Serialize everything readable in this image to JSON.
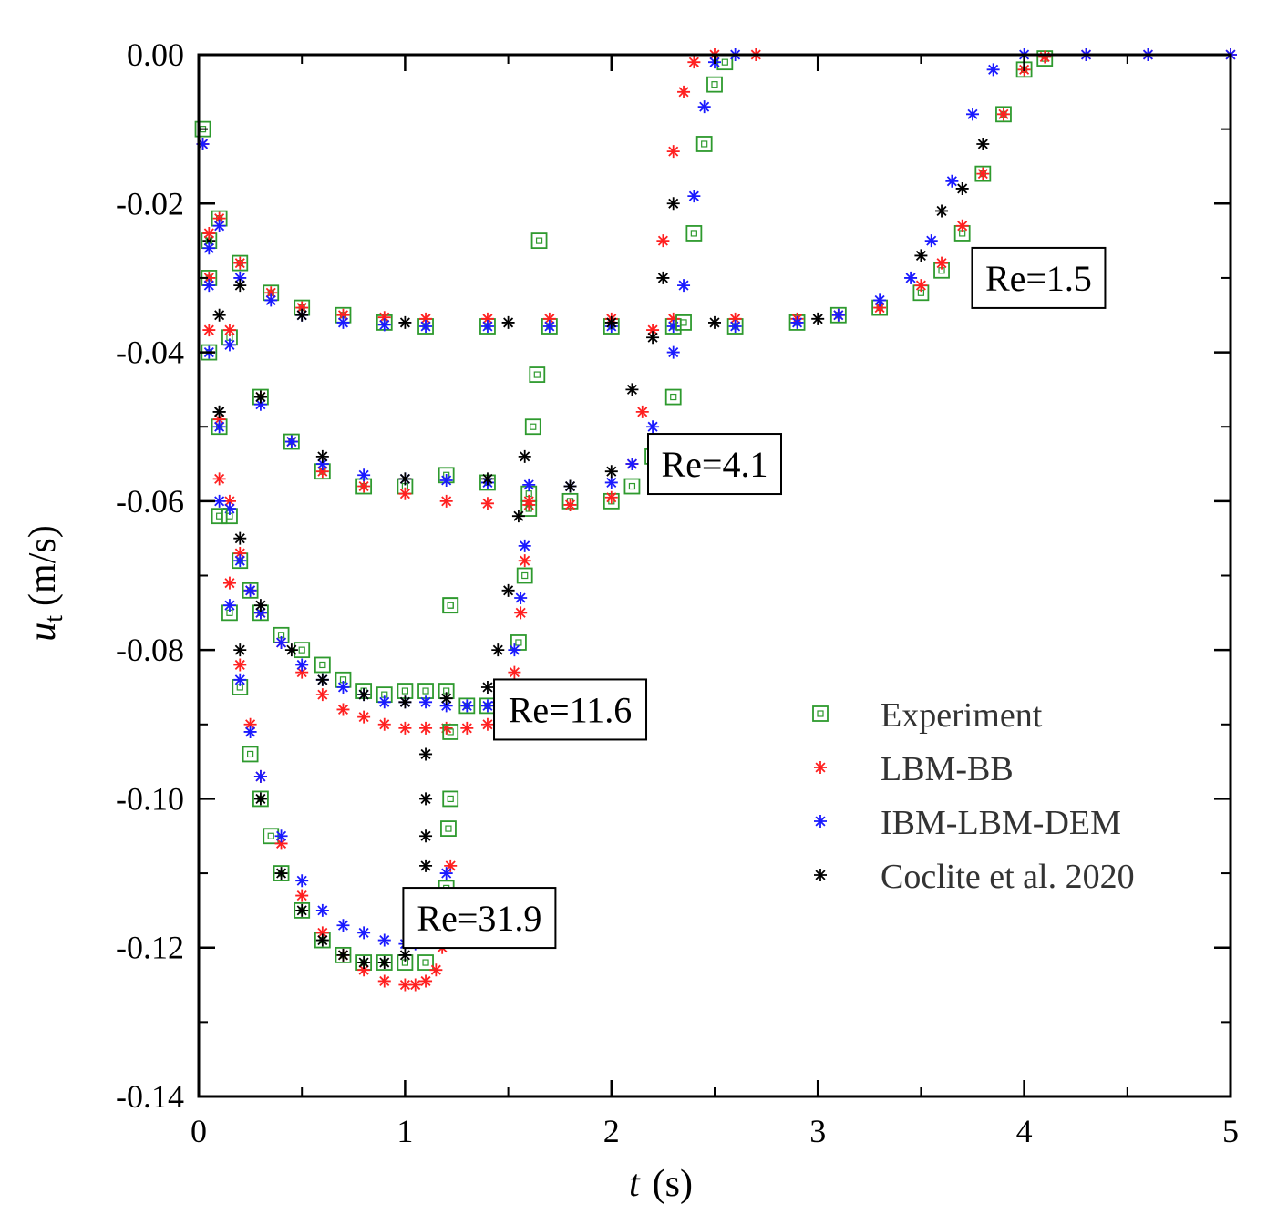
{
  "chart_data": {
    "type": "scatter",
    "xlabel": {
      "symbol": "t",
      "unit": "(s)"
    },
    "ylabel": {
      "symbol": "u",
      "subscript": "t",
      "unit": "(m/s)"
    },
    "xlim": [
      0,
      5
    ],
    "ylim": [
      -0.14,
      0.0
    ],
    "xticks": [
      0,
      1,
      2,
      3,
      4,
      5
    ],
    "xtick_labels": [
      "0",
      "1",
      "2",
      "3",
      "4",
      "5"
    ],
    "yticks": [
      0.0,
      -0.02,
      -0.04,
      -0.06,
      -0.08,
      -0.1,
      -0.12,
      -0.14
    ],
    "ytick_labels": [
      "0.00",
      "-0.02",
      "-0.04",
      "-0.06",
      "-0.08",
      "-0.10",
      "-0.12",
      "-0.14"
    ],
    "grid": false,
    "legend_position": "center-right",
    "legend": [
      {
        "label": "Experiment",
        "marker": "square",
        "color": "#2e9a2e"
      },
      {
        "label": "LBM-BB",
        "marker": "asterisk",
        "color": "#ff2020"
      },
      {
        "label": "IBM-LBM-DEM",
        "marker": "asterisk",
        "color": "#1a1aff"
      },
      {
        "label": "Coclite et al. 2020",
        "marker": "asterisk",
        "color": "#000000"
      }
    ],
    "annotations": [
      {
        "text": "Re=1.5",
        "x": 4.07,
        "y": -0.03
      },
      {
        "text": "Re=4.1",
        "x": 2.5,
        "y": -0.055
      },
      {
        "text": "Re=11.6",
        "x": 1.8,
        "y": -0.088
      },
      {
        "text": "Re=31.9",
        "x": 1.36,
        "y": -0.116
      }
    ],
    "series": [
      {
        "name": "Experiment",
        "case": "Re=1.5",
        "x": [
          0.02,
          0.1,
          0.2,
          0.35,
          0.5,
          0.7,
          0.9,
          1.1,
          1.4,
          1.7,
          2.0,
          2.3,
          2.6,
          2.9,
          3.1,
          3.3,
          3.5,
          3.6,
          3.7,
          3.8,
          3.9,
          4.0,
          4.1
        ],
        "y": [
          -0.01,
          -0.022,
          -0.028,
          -0.032,
          -0.034,
          -0.035,
          -0.036,
          -0.0365,
          -0.0365,
          -0.0365,
          -0.0365,
          -0.0365,
          -0.0365,
          -0.036,
          -0.035,
          -0.034,
          -0.032,
          -0.029,
          -0.024,
          -0.016,
          -0.008,
          -0.002,
          -0.0005
        ]
      },
      {
        "name": "LBM-BB",
        "case": "Re=1.5",
        "x": [
          0.02,
          0.1,
          0.2,
          0.35,
          0.5,
          0.7,
          0.9,
          1.1,
          1.4,
          1.7,
          2.0,
          2.3,
          2.6,
          2.9,
          3.1,
          3.3,
          3.5,
          3.6,
          3.7,
          3.8,
          3.9,
          4.0,
          4.1,
          4.3,
          4.6,
          5.0
        ],
        "y": [
          -0.012,
          -0.022,
          -0.028,
          -0.032,
          -0.034,
          -0.035,
          -0.0353,
          -0.0355,
          -0.0355,
          -0.0355,
          -0.0355,
          -0.0355,
          -0.0355,
          -0.0355,
          -0.035,
          -0.034,
          -0.031,
          -0.028,
          -0.023,
          -0.016,
          -0.008,
          -0.002,
          -0.0003,
          0.0,
          0.0,
          0.0
        ]
      },
      {
        "name": "IBM-LBM-DEM",
        "case": "Re=1.5",
        "x": [
          0.02,
          0.1,
          0.2,
          0.35,
          0.5,
          0.7,
          0.9,
          1.1,
          1.4,
          1.7,
          2.0,
          2.3,
          2.6,
          2.9,
          3.1,
          3.3,
          3.45,
          3.55,
          3.65,
          3.75,
          3.85,
          4.0,
          4.3,
          4.6,
          5.0
        ],
        "y": [
          -0.012,
          -0.023,
          -0.03,
          -0.033,
          -0.035,
          -0.036,
          -0.0363,
          -0.0365,
          -0.0365,
          -0.0365,
          -0.0365,
          -0.0365,
          -0.0365,
          -0.036,
          -0.035,
          -0.033,
          -0.03,
          -0.025,
          -0.017,
          -0.008,
          -0.002,
          0.0,
          0.0,
          0.0,
          0.0
        ]
      },
      {
        "name": "Coclite et al. 2020",
        "case": "Re=1.5",
        "x": [
          0.05,
          0.2,
          0.5,
          1.0,
          1.5,
          2.0,
          2.5,
          3.0,
          3.5,
          3.6,
          3.7,
          3.8
        ],
        "y": [
          -0.025,
          -0.031,
          -0.035,
          -0.036,
          -0.036,
          -0.036,
          -0.036,
          -0.0355,
          -0.027,
          -0.021,
          -0.018,
          -0.012
        ]
      },
      {
        "name": "Experiment",
        "case": "Re=4.1",
        "x": [
          0.05,
          0.15,
          0.3,
          0.45,
          0.6,
          0.8,
          1.0,
          1.2,
          1.4,
          1.6,
          1.8,
          2.0,
          2.1,
          2.2,
          2.3,
          2.35,
          2.4,
          2.45,
          2.5,
          2.55
        ],
        "y": [
          -0.025,
          -0.038,
          -0.046,
          -0.052,
          -0.056,
          -0.058,
          -0.058,
          -0.0565,
          -0.0575,
          -0.059,
          -0.06,
          -0.06,
          -0.058,
          -0.054,
          -0.046,
          -0.036,
          -0.024,
          -0.012,
          -0.004,
          -0.001
        ]
      },
      {
        "name": "LBM-BB",
        "case": "Re=4.1",
        "x": [
          0.05,
          0.15,
          0.3,
          0.45,
          0.6,
          0.8,
          1.0,
          1.2,
          1.4,
          1.6,
          1.8,
          2.0,
          2.1,
          2.15,
          2.2,
          2.25,
          2.3,
          2.35,
          2.4,
          2.5,
          2.7
        ],
        "y": [
          -0.024,
          -0.037,
          -0.046,
          -0.052,
          -0.056,
          -0.058,
          -0.059,
          -0.06,
          -0.0603,
          -0.0605,
          -0.0605,
          -0.0595,
          -0.055,
          -0.048,
          -0.037,
          -0.025,
          -0.013,
          -0.005,
          -0.001,
          0.0,
          0.0
        ]
      },
      {
        "name": "IBM-LBM-DEM",
        "case": "Re=4.1",
        "x": [
          0.05,
          0.15,
          0.3,
          0.45,
          0.6,
          0.8,
          1.0,
          1.2,
          1.4,
          1.6,
          1.8,
          2.0,
          2.1,
          2.2,
          2.3,
          2.35,
          2.4,
          2.45,
          2.5,
          2.6
        ],
        "y": [
          -0.026,
          -0.039,
          -0.047,
          -0.052,
          -0.055,
          -0.0565,
          -0.057,
          -0.0572,
          -0.0575,
          -0.0578,
          -0.058,
          -0.0575,
          -0.055,
          -0.05,
          -0.04,
          -0.031,
          -0.019,
          -0.007,
          -0.001,
          0.0
        ]
      },
      {
        "name": "Coclite et al. 2020",
        "case": "Re=4.1",
        "x": [
          0.1,
          0.3,
          0.6,
          1.0,
          1.4,
          1.8,
          2.0,
          2.1,
          2.2,
          2.25,
          2.3
        ],
        "y": [
          -0.035,
          -0.046,
          -0.054,
          -0.057,
          -0.057,
          -0.058,
          -0.056,
          -0.045,
          -0.038,
          -0.03,
          -0.02
        ]
      },
      {
        "name": "Experiment",
        "case": "Re=11.6",
        "x": [
          0.05,
          0.1,
          0.15,
          0.2,
          0.25,
          0.3,
          0.4,
          0.5,
          0.6,
          0.7,
          0.8,
          0.9,
          1.0,
          1.1,
          1.2,
          1.3,
          1.4,
          1.5,
          1.55,
          1.58,
          1.6,
          1.62,
          1.64,
          1.65
        ],
        "y": [
          -0.03,
          -0.05,
          -0.062,
          -0.068,
          -0.072,
          -0.075,
          -0.078,
          -0.08,
          -0.082,
          -0.084,
          -0.0855,
          -0.086,
          -0.0855,
          -0.0855,
          -0.0855,
          -0.0875,
          -0.0875,
          -0.086,
          -0.079,
          -0.07,
          -0.061,
          -0.05,
          -0.043,
          -0.025
        ]
      },
      {
        "name": "LBM-BB",
        "case": "Re=11.6",
        "x": [
          0.05,
          0.1,
          0.15,
          0.2,
          0.25,
          0.3,
          0.4,
          0.5,
          0.6,
          0.7,
          0.8,
          0.9,
          1.0,
          1.1,
          1.2,
          1.3,
          1.4,
          1.5,
          1.53,
          1.56,
          1.58,
          1.6
        ],
        "y": [
          -0.03,
          -0.049,
          -0.06,
          -0.067,
          -0.072,
          -0.075,
          -0.079,
          -0.083,
          -0.086,
          -0.088,
          -0.089,
          -0.09,
          -0.0905,
          -0.0905,
          -0.0905,
          -0.0905,
          -0.09,
          -0.087,
          -0.083,
          -0.075,
          -0.068,
          -0.06
        ]
      },
      {
        "name": "IBM-LBM-DEM",
        "case": "Re=11.6",
        "x": [
          0.05,
          0.1,
          0.15,
          0.2,
          0.25,
          0.3,
          0.4,
          0.5,
          0.6,
          0.7,
          0.8,
          0.9,
          1.0,
          1.1,
          1.2,
          1.3,
          1.4,
          1.45,
          1.5,
          1.53,
          1.56,
          1.58
        ],
        "y": [
          -0.031,
          -0.05,
          -0.061,
          -0.068,
          -0.072,
          -0.075,
          -0.079,
          -0.082,
          -0.084,
          -0.085,
          -0.086,
          -0.087,
          -0.087,
          -0.087,
          -0.0875,
          -0.0875,
          -0.0875,
          -0.087,
          -0.085,
          -0.08,
          -0.073,
          -0.066
        ]
      },
      {
        "name": "Coclite et al. 2020",
        "case": "Re=11.6",
        "x": [
          0.1,
          0.2,
          0.3,
          0.45,
          0.6,
          0.8,
          1.0,
          1.2,
          1.4,
          1.45,
          1.5,
          1.55,
          1.58
        ],
        "y": [
          -0.048,
          -0.065,
          -0.074,
          -0.08,
          -0.084,
          -0.086,
          -0.087,
          -0.0865,
          -0.085,
          -0.08,
          -0.072,
          -0.062,
          -0.054
        ]
      },
      {
        "name": "Experiment",
        "case": "Re=31.9",
        "x": [
          0.05,
          0.1,
          0.15,
          0.2,
          0.25,
          0.3,
          0.35,
          0.4,
          0.5,
          0.6,
          0.7,
          0.8,
          0.9,
          1.0,
          1.1,
          1.15,
          1.2,
          1.21,
          1.22,
          1.22,
          1.22,
          1.22
        ],
        "y": [
          -0.04,
          -0.062,
          -0.075,
          -0.085,
          -0.094,
          -0.1,
          -0.105,
          -0.11,
          -0.115,
          -0.119,
          -0.121,
          -0.122,
          -0.122,
          -0.122,
          -0.122,
          -0.118,
          -0.112,
          -0.104,
          -0.1,
          -0.091,
          -0.074,
          -0.074
        ]
      },
      {
        "name": "LBM-BB",
        "case": "Re=31.9",
        "x": [
          0.05,
          0.1,
          0.15,
          0.2,
          0.25,
          0.3,
          0.4,
          0.5,
          0.6,
          0.7,
          0.8,
          0.9,
          1.0,
          1.05,
          1.1,
          1.15,
          1.18,
          1.2,
          1.22
        ],
        "y": [
          -0.037,
          -0.057,
          -0.071,
          -0.082,
          -0.09,
          -0.097,
          -0.106,
          -0.113,
          -0.118,
          -0.121,
          -0.123,
          -0.1245,
          -0.125,
          -0.125,
          -0.1245,
          -0.123,
          -0.12,
          -0.115,
          -0.109
        ]
      },
      {
        "name": "IBM-LBM-DEM",
        "case": "Re=31.9",
        "x": [
          0.05,
          0.1,
          0.15,
          0.2,
          0.25,
          0.3,
          0.4,
          0.5,
          0.6,
          0.7,
          0.8,
          0.9,
          1.0,
          1.05,
          1.1,
          1.15,
          1.18,
          1.2
        ],
        "y": [
          -0.04,
          -0.06,
          -0.074,
          -0.084,
          -0.091,
          -0.097,
          -0.105,
          -0.111,
          -0.115,
          -0.117,
          -0.118,
          -0.119,
          -0.1195,
          -0.1195,
          -0.119,
          -0.117,
          -0.114,
          -0.11
        ]
      },
      {
        "name": "Coclite et al. 2020",
        "case": "Re=31.9",
        "x": [
          0.1,
          0.2,
          0.3,
          0.4,
          0.5,
          0.6,
          0.7,
          0.8,
          0.9,
          1.0,
          1.05,
          1.08,
          1.1,
          1.1,
          1.1,
          1.1
        ],
        "y": [
          -0.048,
          -0.08,
          -0.1,
          -0.11,
          -0.115,
          -0.119,
          -0.121,
          -0.122,
          -0.122,
          -0.121,
          -0.118,
          -0.113,
          -0.109,
          -0.105,
          -0.1,
          -0.094
        ]
      }
    ]
  }
}
